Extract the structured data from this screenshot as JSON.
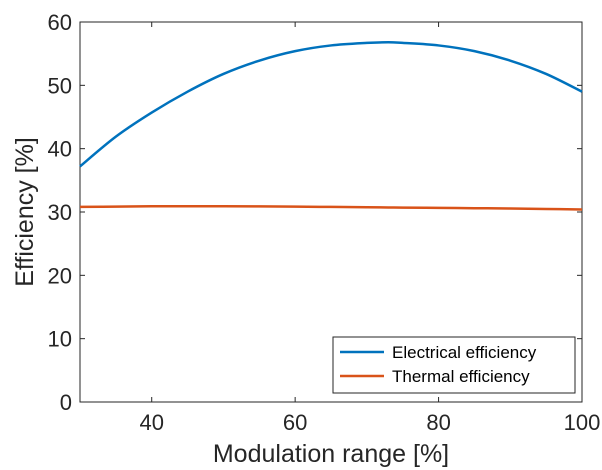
{
  "chart_data": {
    "type": "line",
    "xlabel": "Modulation range [%]",
    "ylabel": "Efficiency [%]",
    "xlim": [
      30,
      100
    ],
    "ylim": [
      0,
      60
    ],
    "xticks": [
      40,
      60,
      80,
      100
    ],
    "yticks": [
      0,
      10,
      20,
      30,
      40,
      50,
      60
    ],
    "xtick_labels": [
      "40",
      "60",
      "80",
      "100"
    ],
    "ytick_labels": [
      "0",
      "10",
      "20",
      "30",
      "40",
      "50",
      "60"
    ],
    "grid": false,
    "legend_position": "bottom-right",
    "x": [
      30,
      35,
      40,
      45,
      50,
      55,
      60,
      65,
      70,
      73,
      75,
      80,
      85,
      90,
      95,
      100
    ],
    "series": [
      {
        "name": "Electrical efficiency",
        "color": "#0072BD",
        "values": [
          37.2,
          41.9,
          45.7,
          49.0,
          51.8,
          53.9,
          55.4,
          56.3,
          56.7,
          56.8,
          56.7,
          56.3,
          55.4,
          53.9,
          51.8,
          49.0
        ]
      },
      {
        "name": "Thermal efficiency",
        "color": "#D95319",
        "values": [
          30.8,
          30.85,
          30.9,
          30.9,
          30.9,
          30.88,
          30.85,
          30.8,
          30.75,
          30.72,
          30.7,
          30.65,
          30.6,
          30.55,
          30.48,
          30.4
        ]
      }
    ]
  }
}
